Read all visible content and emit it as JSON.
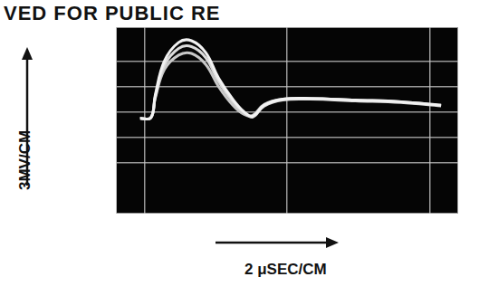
{
  "chart_data": {
    "type": "line",
    "annotations": [
      "VED FOR PUBLIC RE"
    ],
    "x_label": "2 μSEC/CM",
    "y_label": "3MV/CM",
    "x": [
      -0.3,
      0.45,
      0.76,
      1.4,
      2.4,
      3.3,
      4.3,
      5.2,
      6.2,
      7.0,
      7.6,
      8.4,
      9.7,
      11.6,
      14.8,
      18,
      20.8
    ],
    "series": [
      {
        "color": "#f2f2f2",
        "values": [
          -0.75,
          -0.7,
          2,
          6,
          8.2,
          8.4,
          7,
          4,
          1.5,
          0,
          -0.5,
          0.8,
          1.5,
          1.6,
          1.4,
          1.2,
          0.8
        ]
      },
      {
        "color": "#dcdcdc",
        "values": [
          -0.75,
          -0.7,
          1.8,
          5.5,
          7.5,
          7.7,
          6.4,
          3.6,
          1.2,
          -0.1,
          -0.6,
          0.7,
          1.4,
          1.5,
          1.3,
          1.1,
          0.7
        ]
      },
      {
        "color": "#c8c8c8",
        "values": [
          -0.75,
          -0.7,
          1.6,
          5,
          6.7,
          6.9,
          5.6,
          3,
          0.8,
          -0.3,
          -0.4,
          0.9,
          1.5,
          1.6,
          1.4,
          1.2,
          0.8
        ]
      }
    ],
    "xlim": [
      -2,
      22
    ],
    "xticks": [
      0,
      10,
      20
    ],
    "ylim": [
      -12,
      10
    ],
    "yticks": [
      -6,
      -3,
      0,
      3,
      6
    ],
    "grid": true,
    "tick_labels": false
  }
}
